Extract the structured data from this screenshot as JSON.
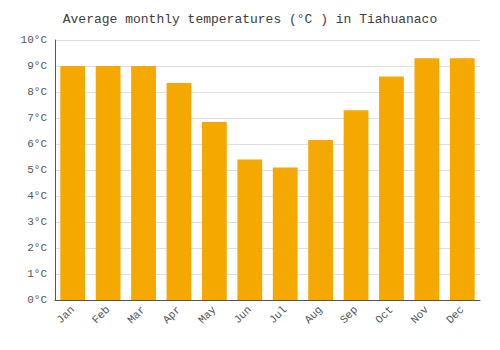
{
  "chart_data": {
    "type": "bar",
    "title": "Average monthly temperatures (°C ) in Tiahuanaco",
    "categories": [
      "Jan",
      "Feb",
      "Mar",
      "Apr",
      "May",
      "Jun",
      "Jul",
      "Aug",
      "Sep",
      "Oct",
      "Nov",
      "Dec"
    ],
    "values": [
      9.0,
      9.0,
      9.0,
      8.35,
      6.85,
      5.4,
      5.1,
      6.15,
      7.3,
      8.6,
      9.3,
      9.3
    ],
    "color": "#F5A800",
    "ylim": [
      0,
      10
    ],
    "yticks": [
      {
        "value": 0,
        "label": "0°C"
      },
      {
        "value": 1,
        "label": "1°C"
      },
      {
        "value": 2,
        "label": "2°C"
      },
      {
        "value": 3,
        "label": "3°C"
      },
      {
        "value": 4,
        "label": "4°C"
      },
      {
        "value": 5,
        "label": "5°C"
      },
      {
        "value": 6,
        "label": "6°C"
      },
      {
        "value": 7,
        "label": "7°C"
      },
      {
        "value": 8,
        "label": "8°C"
      },
      {
        "value": 9,
        "label": "9°C"
      },
      {
        "value": 10,
        "label": "10°C"
      }
    ],
    "grid": true
  }
}
